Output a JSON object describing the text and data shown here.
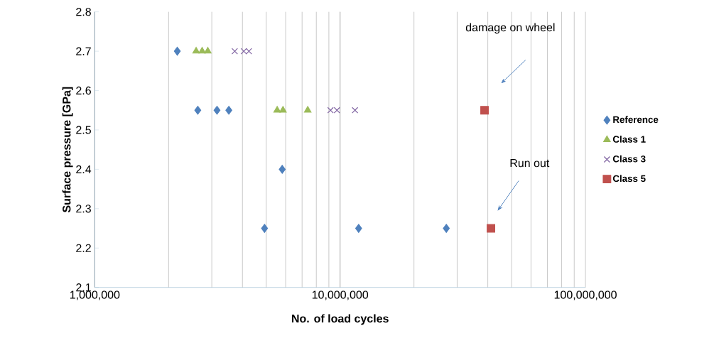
{
  "chart_data": {
    "type": "scatter",
    "xlabel": "No. of load cycles",
    "ylabel": "Surface pressure [GPa]",
    "log": "x",
    "xlim": [
      1000000,
      100000000
    ],
    "ylim": [
      2.1,
      2.8
    ],
    "xticks": [
      {
        "value": 1000000,
        "label": "1,000,000"
      },
      {
        "value": 10000000,
        "label": "10,000,000"
      },
      {
        "value": 100000000,
        "label": "100,000,000"
      }
    ],
    "yticks": [
      2.1,
      2.2,
      2.3,
      2.4,
      2.5,
      2.6,
      2.7,
      2.8
    ],
    "grid": "x",
    "legend": "right",
    "series": [
      {
        "name": "Reference",
        "color": "#4f81bd",
        "marker": "diamond",
        "x": [
          2170000,
          2630000,
          3150000,
          3520000,
          5810000,
          4920000,
          11900000,
          27100000
        ],
        "values": [
          2.7,
          2.55,
          2.55,
          2.55,
          2.4,
          2.25,
          2.25,
          2.25
        ]
      },
      {
        "name": "Class 1",
        "color": "#9bbb59",
        "marker": "triangle",
        "x": [
          2590000,
          2740000,
          2890000,
          5540000,
          5850000,
          7380000
        ],
        "values": [
          2.7,
          2.7,
          2.7,
          2.55,
          2.55,
          2.55
        ]
      },
      {
        "name": "Class 3",
        "color": "#8064a2",
        "marker": "cross",
        "x": [
          3720000,
          4050000,
          4250000,
          9140000,
          9710000,
          11500000
        ],
        "values": [
          2.7,
          2.7,
          2.7,
          2.55,
          2.55,
          2.55
        ]
      },
      {
        "name": "Class 5",
        "color": "#c0504d",
        "marker": "square",
        "x": [
          38800000,
          41200000
        ],
        "values": [
          2.55,
          2.25
        ]
      }
    ],
    "annotations": [
      "damage on wheel",
      "Run out"
    ]
  }
}
